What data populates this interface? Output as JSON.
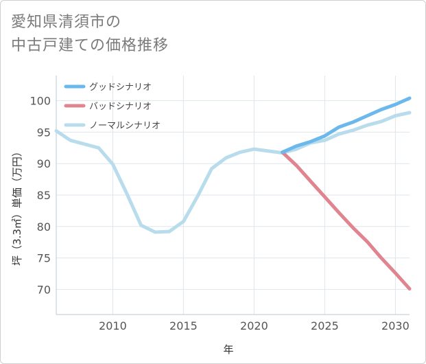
{
  "title_lines": [
    "愛知県清須市の",
    "中古戸建ての価格推移"
  ],
  "colors": {
    "good": "#6bb8ec",
    "bad": "#e0848f",
    "normal": "#b8dcec",
    "grid": "#dde6ec",
    "axis": "#b9c9d6"
  },
  "chart_data": {
    "type": "line",
    "title": "愛知県清須市の中古戸建ての価格推移",
    "xlabel": "年",
    "ylabel": "坪（3.3㎡）単価（万円）",
    "xlim": [
      2006,
      2031
    ],
    "ylim": [
      66,
      104
    ],
    "xticks": [
      2010,
      2015,
      2020,
      2025,
      2030
    ],
    "yticks": [
      70,
      75,
      80,
      85,
      90,
      95,
      100
    ],
    "grid": true,
    "legend_position": "top-left",
    "series": [
      {
        "name": "グッドシナリオ",
        "color_key": "good",
        "x": [
          2022,
          2023,
          2024,
          2025,
          2026,
          2027,
          2028,
          2029,
          2030,
          2031
        ],
        "y": [
          91.8,
          92.8,
          93.5,
          94.4,
          95.8,
          96.6,
          97.6,
          98.6,
          99.4,
          100.4
        ]
      },
      {
        "name": "バッドシナリオ",
        "color_key": "bad",
        "x": [
          2022,
          2023,
          2024,
          2025,
          2026,
          2027,
          2028,
          2029,
          2030,
          2031
        ],
        "y": [
          91.8,
          89.7,
          87.2,
          84.7,
          82.2,
          79.8,
          77.6,
          75.0,
          72.6,
          70.1
        ]
      },
      {
        "name": "ノーマルシナリオ",
        "color_key": "normal",
        "x": [
          2006,
          2007,
          2008,
          2009,
          2010,
          2011,
          2012,
          2013,
          2014,
          2015,
          2016,
          2017,
          2018,
          2019,
          2020,
          2021,
          2022,
          2023,
          2024,
          2025,
          2026,
          2027,
          2028,
          2029,
          2030,
          2031
        ],
        "y": [
          95.2,
          93.7,
          93.1,
          92.5,
          89.9,
          85.2,
          80.2,
          79.1,
          79.2,
          80.8,
          84.8,
          89.2,
          90.9,
          91.8,
          92.3,
          92.0,
          91.7,
          92.3,
          93.3,
          93.7,
          94.7,
          95.3,
          96.1,
          96.7,
          97.6,
          98.1
        ]
      }
    ]
  }
}
